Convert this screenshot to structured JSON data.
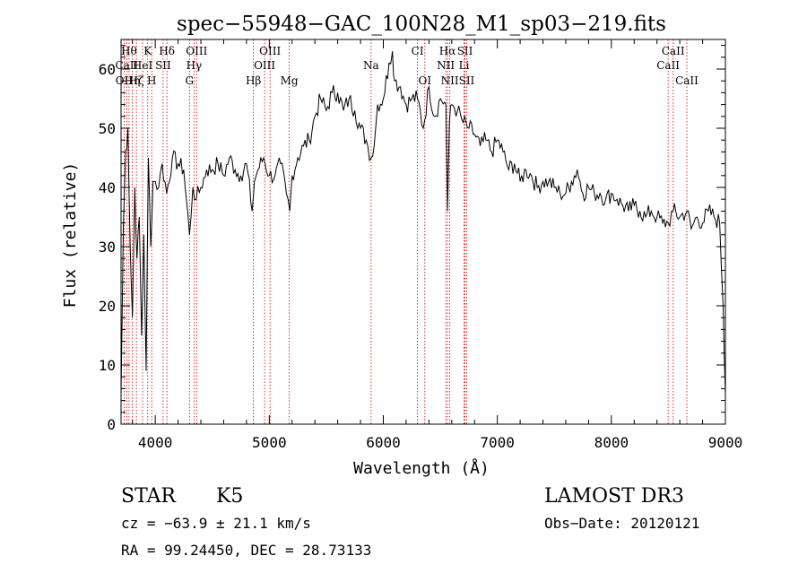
{
  "chart_data": {
    "type": "line",
    "title": "spec−55948−GAC_100N28_M1_sp03−219.fits",
    "xlabel": "Wavelength (Å)",
    "ylabel": "Flux (relative)",
    "xlim": [
      3700,
      9000
    ],
    "ylim": [
      0,
      65
    ],
    "xticks": [
      4000,
      5000,
      6000,
      7000,
      8000,
      9000
    ],
    "yticks": [
      0,
      10,
      20,
      30,
      40,
      50,
      60
    ],
    "grid": false,
    "series": [
      {
        "name": "flux",
        "x": [
          3700,
          3720,
          3740,
          3760,
          3780,
          3800,
          3820,
          3840,
          3860,
          3880,
          3900,
          3920,
          3940,
          3960,
          3980,
          4000,
          4030,
          4060,
          4100,
          4150,
          4200,
          4250,
          4300,
          4330,
          4360,
          4400,
          4450,
          4500,
          4550,
          4600,
          4650,
          4700,
          4750,
          4800,
          4850,
          4870,
          4900,
          4950,
          5000,
          5050,
          5100,
          5150,
          5180,
          5200,
          5250,
          5300,
          5350,
          5400,
          5450,
          5500,
          5550,
          5600,
          5650,
          5700,
          5750,
          5800,
          5850,
          5893,
          5920,
          5950,
          6000,
          6050,
          6080,
          6100,
          6150,
          6200,
          6250,
          6300,
          6350,
          6400,
          6450,
          6500,
          6550,
          6563,
          6580,
          6600,
          6650,
          6700,
          6750,
          6800,
          6850,
          6900,
          6950,
          7000,
          7050,
          7100,
          7150,
          7200,
          7250,
          7300,
          7350,
          7400,
          7450,
          7500,
          7550,
          7600,
          7650,
          7700,
          7750,
          7800,
          7850,
          7900,
          7950,
          8000,
          8050,
          8100,
          8150,
          8200,
          8250,
          8300,
          8350,
          8400,
          8450,
          8498,
          8542,
          8600,
          8662,
          8700,
          8750,
          8800,
          8850,
          8900,
          8950,
          8980,
          9000
        ],
        "values": [
          5,
          33,
          46,
          50,
          30,
          18,
          40,
          28,
          35,
          15,
          32,
          9,
          45,
          30,
          41,
          41,
          40,
          44,
          39,
          45,
          44,
          43,
          32,
          40,
          38,
          40,
          43,
          43,
          44,
          42,
          45,
          43,
          42,
          44,
          36,
          41,
          43,
          45,
          42,
          42,
          44,
          39,
          36,
          42,
          45,
          47,
          48,
          52,
          55,
          53,
          56,
          56,
          53,
          55,
          53,
          50,
          48,
          45,
          47,
          54,
          55,
          61,
          63,
          58,
          57,
          54,
          55,
          55,
          50,
          57,
          52,
          55,
          54,
          36,
          51,
          54,
          53,
          51,
          50,
          49,
          47,
          48,
          46,
          48,
          46,
          43,
          44,
          41,
          43,
          42,
          40,
          41,
          41,
          40,
          39,
          39,
          41,
          43,
          39,
          40,
          39,
          39,
          38,
          39,
          38,
          37,
          36,
          37,
          36,
          35,
          36,
          35,
          34,
          34,
          36,
          35,
          36,
          33,
          35,
          34,
          36,
          35,
          34,
          20,
          5
        ]
      }
    ],
    "lines": [
      {
        "x": 3727,
        "label": "OII",
        "row": 3
      },
      {
        "x": 3750,
        "label": "CaII",
        "row": 2
      },
      {
        "x": 3770,
        "label": "Hθ",
        "row": 1
      },
      {
        "x": 3798,
        "label": "Hη",
        "row": 3
      },
      {
        "x": 3835,
        "label": "Hζ",
        "row": 3
      },
      {
        "x": 3889,
        "label": "HeI",
        "row": 2
      },
      {
        "x": 3934,
        "label": "K",
        "row": 1
      },
      {
        "x": 3969,
        "label": "H",
        "row": 3
      },
      {
        "x": 4069,
        "label": "SII",
        "row": 2
      },
      {
        "x": 4102,
        "label": "Hδ",
        "row": 1
      },
      {
        "x": 4300,
        "label": "G",
        "row": 3
      },
      {
        "x": 4340,
        "label": "Hγ",
        "row": 2
      },
      {
        "x": 4363,
        "label": "OIII",
        "row": 1
      },
      {
        "x": 4861,
        "label": "Hβ",
        "row": 3
      },
      {
        "x": 4959,
        "label": "OIII",
        "row": 2
      },
      {
        "x": 5007,
        "label": "OIII",
        "row": 1
      },
      {
        "x": 5175,
        "label": "Mg",
        "row": 3
      },
      {
        "x": 5893,
        "label": "Na",
        "row": 2
      },
      {
        "x": 6300,
        "label": "CI",
        "row": 1
      },
      {
        "x": 6364,
        "label": "OI",
        "row": 3
      },
      {
        "x": 6548,
        "label": "NII",
        "row": 2
      },
      {
        "x": 6563,
        "label": "Hα",
        "row": 1
      },
      {
        "x": 6583,
        "label": "NII",
        "row": 3
      },
      {
        "x": 6708,
        "label": "Li",
        "row": 2
      },
      {
        "x": 6716,
        "label": "SII",
        "row": 1
      },
      {
        "x": 6731,
        "label": "SII",
        "row": 3
      },
      {
        "x": 8498,
        "label": "CaII",
        "row": 2
      },
      {
        "x": 8542,
        "label": "CaII",
        "row": 1
      },
      {
        "x": 8662,
        "label": "CaII",
        "row": 3
      }
    ]
  },
  "info": {
    "object_class": "STAR",
    "subclass": "K5",
    "survey": "LAMOST DR3",
    "redshift": "cz = −63.9 ± 21.1 km/s",
    "obs_date": "Obs−Date: 20120121",
    "coordinates": "RA =  99.24450, DEC =  28.73133"
  },
  "colors": {
    "spectrum": "#000000",
    "line_marker": "#cc0000",
    "axes": "#000000"
  }
}
